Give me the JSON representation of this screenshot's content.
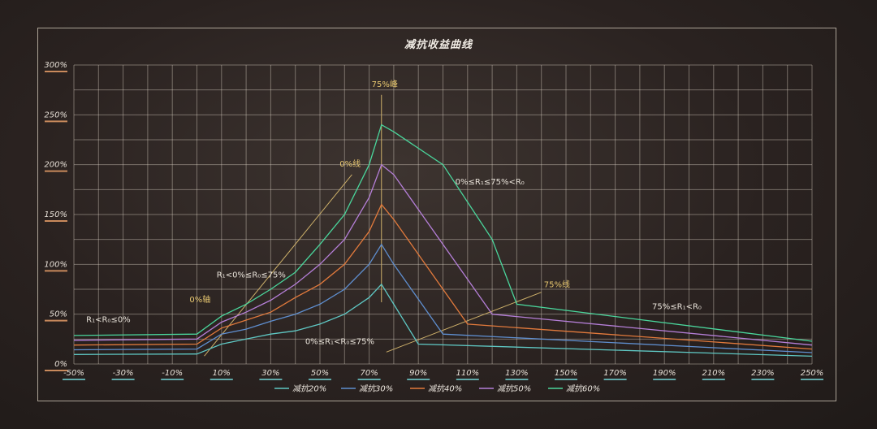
{
  "chart_data": {
    "type": "line",
    "title": "减抗收益曲线",
    "xlabel": "",
    "ylabel": "",
    "xlim": [
      -50,
      250
    ],
    "ylim": [
      0,
      300
    ],
    "x_ticks": [
      "-50%",
      "-30%",
      "-10%",
      "10%",
      "30%",
      "50%",
      "70%",
      "90%",
      "110%",
      "130%",
      "150%",
      "170%",
      "190%",
      "210%",
      "230%",
      "250%"
    ],
    "y_ticks": [
      "0%",
      "50%",
      "100%",
      "150%",
      "200%",
      "250%",
      "300%"
    ],
    "grid": true,
    "legend_position": "bottom",
    "series": [
      {
        "name": "减抗20%",
        "color": "#5fc8c4",
        "x": [
          -50,
          0,
          10,
          20,
          30,
          40,
          50,
          60,
          70,
          75,
          80,
          90,
          250
        ],
        "y": [
          9.5,
          10,
          20,
          25,
          30,
          33.3,
          40,
          50,
          66.7,
          80,
          60,
          20,
          7.8
        ]
      },
      {
        "name": "减抗30%",
        "color": "#5f8fd0",
        "x": [
          -50,
          0,
          10,
          20,
          30,
          40,
          50,
          60,
          70,
          75,
          80,
          100,
          250
        ],
        "y": [
          14.3,
          15,
          30,
          35,
          42.9,
          50,
          60,
          75,
          100,
          120,
          100,
          30,
          11.4
        ]
      },
      {
        "name": "减抗40%",
        "color": "#e27a3c",
        "x": [
          -50,
          0,
          10,
          20,
          30,
          40,
          50,
          60,
          70,
          75,
          80,
          110,
          250
        ],
        "y": [
          19,
          20,
          36,
          44,
          52,
          66.7,
          80,
          100,
          133,
          160,
          145,
          40,
          15
        ]
      },
      {
        "name": "减抗50%",
        "color": "#b57fd8",
        "x": [
          -50,
          0,
          10,
          20,
          30,
          40,
          50,
          60,
          70,
          75,
          80,
          120,
          250
        ],
        "y": [
          23.8,
          25,
          42,
          52,
          64,
          80,
          100,
          125,
          167,
          200,
          190,
          50,
          19
        ]
      },
      {
        "name": "减抗60%",
        "color": "#4ad69c",
        "x": [
          -50,
          0,
          10,
          20,
          30,
          40,
          50,
          60,
          70,
          75,
          80,
          100,
          120,
          130,
          250
        ],
        "y": [
          28.6,
          30,
          48,
          60,
          75,
          92,
          120,
          150,
          200,
          240,
          233,
          200,
          125,
          60,
          22.8
        ]
      }
    ],
    "annotations": [
      {
        "text": "R₁<R₀≤0%",
        "x": -45,
        "y": 42
      },
      {
        "text": "0%轴",
        "x": -3,
        "y": 62
      },
      {
        "text": "R₁<0%≤R₀≤75%",
        "x": 8,
        "y": 87
      },
      {
        "text": "0%线",
        "x": 58,
        "y": 198
      },
      {
        "text": "75%峰",
        "x": 71,
        "y": 278
      },
      {
        "text": "0%≤R₁≤75%<R₀",
        "x": 105,
        "y": 180
      },
      {
        "text": "0%≤R₁<R₀≤75%",
        "x": 44,
        "y": 20
      },
      {
        "text": "75%线",
        "x": 141,
        "y": 77
      },
      {
        "text": "75%≤R₁<R₀",
        "x": 185,
        "y": 55
      }
    ]
  }
}
